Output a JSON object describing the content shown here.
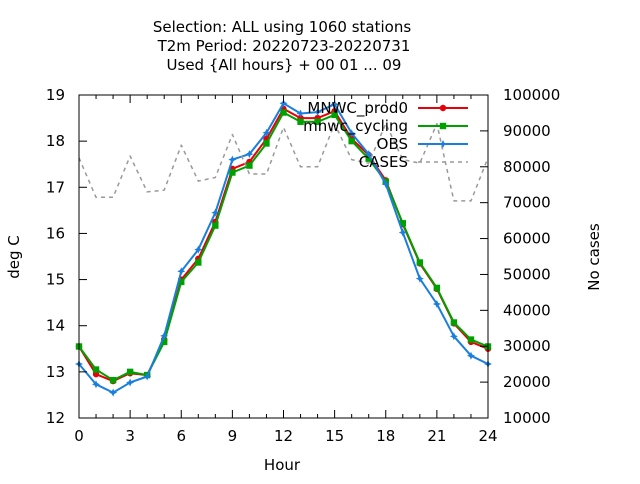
{
  "chart_data": {
    "type": "line",
    "title_lines": [
      "Selection: ALL using  1060 stations",
      "T2m   Period: 20220723-20220731",
      "Used {All hours} + 00 01 ... 09"
    ],
    "xlabel": "Hour",
    "ylabel": "deg C",
    "y2label": "No cases",
    "xlim": [
      0,
      24
    ],
    "ylim": [
      12,
      19
    ],
    "y2lim": [
      10000,
      100000
    ],
    "xticks": [
      "0",
      "3",
      "6",
      "9",
      "12",
      "15",
      "18",
      "21",
      "24"
    ],
    "yticks": [
      "12",
      "13",
      "14",
      "15",
      "16",
      "17",
      "18",
      "19"
    ],
    "y2ticks": [
      "10000",
      "20000",
      "30000",
      "40000",
      "50000",
      "60000",
      "70000",
      "80000",
      "90000",
      "100000"
    ],
    "grid": false,
    "legend_position": "top-right",
    "x": [
      0,
      1,
      2,
      3,
      4,
      5,
      6,
      7,
      8,
      9,
      10,
      11,
      12,
      13,
      14,
      15,
      16,
      17,
      18,
      19,
      20,
      21,
      22,
      23,
      24
    ],
    "series": [
      {
        "name": "MNWC_prod0",
        "color": "#e8000b",
        "marker": "circle",
        "axis": "y",
        "values": [
          13.55,
          12.95,
          12.8,
          12.97,
          12.93,
          13.7,
          15.0,
          15.45,
          16.25,
          17.4,
          17.55,
          18.05,
          18.7,
          18.5,
          18.5,
          18.65,
          18.05,
          17.7,
          17.15,
          16.2,
          15.35,
          14.8,
          14.05,
          13.65,
          13.5
        ]
      },
      {
        "name": "mnwc_cycling",
        "color": "#00a000",
        "marker": "square",
        "axis": "y",
        "values": [
          13.55,
          13.05,
          12.82,
          13.0,
          12.93,
          13.65,
          14.95,
          15.37,
          16.17,
          17.32,
          17.47,
          17.95,
          18.62,
          18.42,
          18.42,
          18.57,
          18.0,
          17.62,
          17.12,
          16.22,
          15.37,
          14.82,
          14.07,
          13.7,
          13.55
        ]
      },
      {
        "name": "OBS",
        "color": "#1a7fdc",
        "marker": "star",
        "axis": "y",
        "values": [
          13.17,
          12.73,
          12.55,
          12.77,
          12.9,
          13.78,
          15.18,
          15.65,
          16.45,
          17.6,
          17.72,
          18.18,
          18.82,
          18.6,
          18.63,
          18.8,
          18.17,
          17.72,
          17.07,
          16.02,
          15.02,
          14.47,
          13.77,
          13.35,
          13.17
        ]
      },
      {
        "name": "CASES",
        "color": "#999999",
        "marker": "none",
        "dashed": true,
        "axis": "y2",
        "values": [
          82500,
          71500,
          71500,
          83000,
          73000,
          73500,
          86000,
          76000,
          77000,
          89000,
          78000,
          78000,
          91000,
          80000,
          80000,
          92000,
          82000,
          81000,
          92000,
          82000,
          81000,
          92000,
          70500,
          70500,
          82500
        ]
      }
    ]
  }
}
